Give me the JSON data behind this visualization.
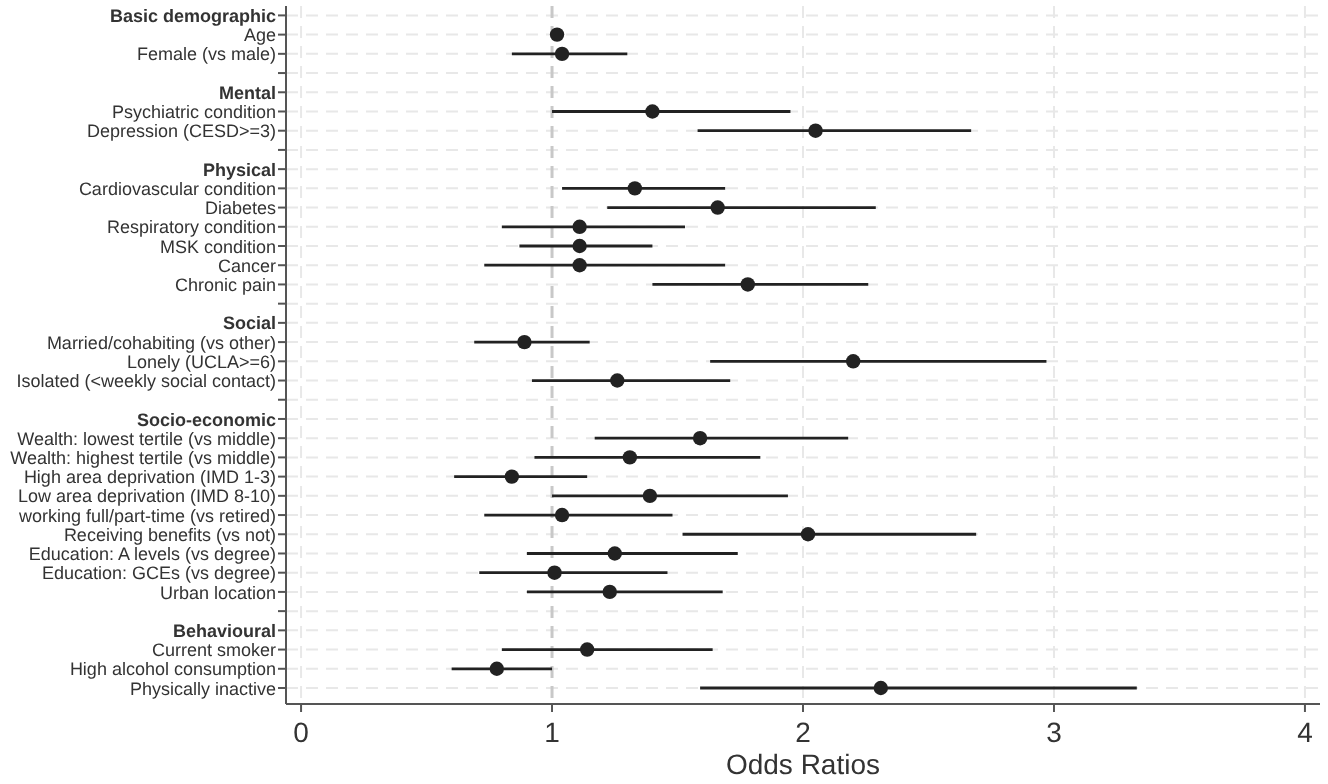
{
  "chart_data": {
    "type": "scatter",
    "orientation": "horizontal",
    "xlabel": "Odds Ratios",
    "categories": [
      "Basic demographic",
      "Age",
      "Female (vs male)",
      null,
      "Mental",
      "Psychiatric condition",
      "Depression (CESD>=3)",
      null,
      "Physical",
      "Cardiovascular condition",
      "Diabetes",
      "Respiratory condition",
      "MSK condition",
      "Cancer",
      "Chronic pain",
      null,
      "Social",
      "Married/cohabiting (vs other)",
      "Lonely (UCLA>=6)",
      "Isolated (<weekly social contact)",
      null,
      "Socio-economic",
      "Wealth: lowest tertile (vs middle)",
      "Wealth: highest tertile (vs middle)",
      "High area deprivation (IMD 1-3)",
      "Low area deprivation (IMD 8-10)",
      "working full/part-time (vs retired)",
      "Receiving benefits (vs not)",
      "Education: A levels (vs degree)",
      "Education: GCEs (vs degree)",
      "Urban location",
      null,
      "Behavioural",
      "Current smoker",
      "High alcohol consumption",
      "Physically inactive"
    ],
    "values": [
      null,
      1.02,
      1.04,
      null,
      null,
      1.4,
      2.05,
      null,
      null,
      1.33,
      1.66,
      1.11,
      1.11,
      1.11,
      1.78,
      null,
      null,
      0.89,
      2.2,
      1.26,
      null,
      null,
      1.59,
      1.31,
      0.84,
      1.39,
      1.04,
      2.02,
      1.25,
      1.01,
      1.23,
      null,
      null,
      1.14,
      0.78,
      2.31
    ],
    "errors": [
      null,
      null,
      [
        0.84,
        1.3
      ],
      null,
      null,
      [
        1.0,
        1.95
      ],
      [
        1.58,
        2.67
      ],
      null,
      null,
      [
        1.04,
        1.69
      ],
      [
        1.22,
        2.29
      ],
      [
        0.8,
        1.53
      ],
      [
        0.87,
        1.4
      ],
      [
        0.73,
        1.69
      ],
      [
        1.4,
        2.26
      ],
      null,
      null,
      [
        0.69,
        1.15
      ],
      [
        1.63,
        2.97
      ],
      [
        0.92,
        1.71
      ],
      null,
      null,
      [
        1.17,
        2.18
      ],
      [
        0.93,
        1.83
      ],
      [
        0.61,
        1.14
      ],
      [
        1.0,
        1.94
      ],
      [
        0.73,
        1.48
      ],
      [
        1.52,
        2.69
      ],
      [
        0.9,
        1.74
      ],
      [
        0.71,
        1.46
      ],
      [
        0.9,
        1.68
      ],
      null,
      null,
      [
        0.8,
        1.64
      ],
      [
        0.6,
        1.0
      ],
      [
        1.59,
        3.33
      ]
    ],
    "color": "#222222",
    "marker": "circle",
    "xlim": [
      -0.06,
      4.06
    ],
    "xticks": [
      0,
      1,
      2,
      3,
      4
    ],
    "grid": true,
    "ref_lines": [
      {
        "axis": "x",
        "value": 1,
        "color": "#c8c8c8",
        "line_style": "dashed"
      }
    ]
  }
}
